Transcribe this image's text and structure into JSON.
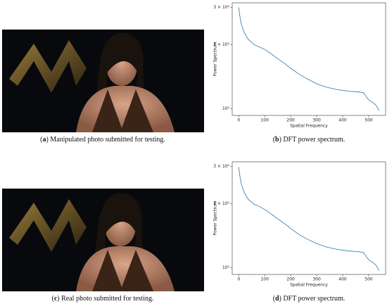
{
  "photos": [
    {
      "caption": {
        "open": "(",
        "letter": "a",
        "text": ") Manipulated photo submitted for testing."
      }
    },
    {
      "caption": {
        "open": "(",
        "letter": "c",
        "text": ") Real photo submitted for testing."
      }
    }
  ],
  "chart_data": [
    {
      "type": "line",
      "ylabel": "Power Spectrum",
      "xlabel": "Spatial Frequency",
      "caption": {
        "open": "(",
        "letter": "b",
        "text": ") DFT power spectrum."
      },
      "yscale": "log",
      "xlim": [
        -25,
        565
      ],
      "ylim": [
        93,
        315
      ],
      "xticks": [
        0,
        100,
        200,
        300,
        400,
        500
      ],
      "yticks": [
        {
          "value": 100,
          "label": "10²"
        },
        {
          "value": 200,
          "label": "2 × 10²"
        },
        {
          "value": 300,
          "label": "3 × 10²"
        }
      ],
      "x": [
        0,
        5,
        10,
        20,
        30,
        40,
        60,
        80,
        100,
        120,
        150,
        180,
        200,
        230,
        260,
        300,
        340,
        380,
        420,
        460,
        480,
        490,
        500,
        520,
        530,
        540
      ],
      "series": [
        {
          "color": "#1f77b4",
          "values": [
            300,
            270,
            250,
            230,
            218,
            210,
            200,
            195,
            190,
            183,
            172,
            162,
            155,
            146,
            139,
            131,
            126,
            123,
            121,
            120,
            119,
            114,
            110,
            106,
            103,
            98
          ]
        }
      ]
    },
    {
      "type": "line",
      "ylabel": "Power Spectrum",
      "xlabel": "Spatial Frequency",
      "caption": {
        "open": "(",
        "letter": "d",
        "text": ") DFT power spectrum."
      },
      "yscale": "log",
      "xlim": [
        -25,
        565
      ],
      "ylim": [
        93,
        315
      ],
      "xticks": [
        0,
        100,
        200,
        300,
        400,
        500
      ],
      "yticks": [
        {
          "value": 100,
          "label": "10²"
        },
        {
          "value": 200,
          "label": "2 × 10²"
        },
        {
          "value": 300,
          "label": "3 × 10²"
        }
      ],
      "x": [
        0,
        5,
        10,
        20,
        30,
        40,
        60,
        80,
        100,
        120,
        150,
        180,
        200,
        230,
        260,
        300,
        340,
        380,
        420,
        460,
        480,
        490,
        500,
        520,
        530,
        540
      ],
      "series": [
        {
          "color": "#1f77b4",
          "values": [
            298,
            268,
            248,
            228,
            216,
            208,
            199,
            194,
            188,
            181,
            170,
            160,
            153,
            144,
            137,
            130,
            125,
            122,
            120,
            119,
            118,
            113,
            109,
            105,
            102,
            97
          ]
        }
      ]
    }
  ]
}
